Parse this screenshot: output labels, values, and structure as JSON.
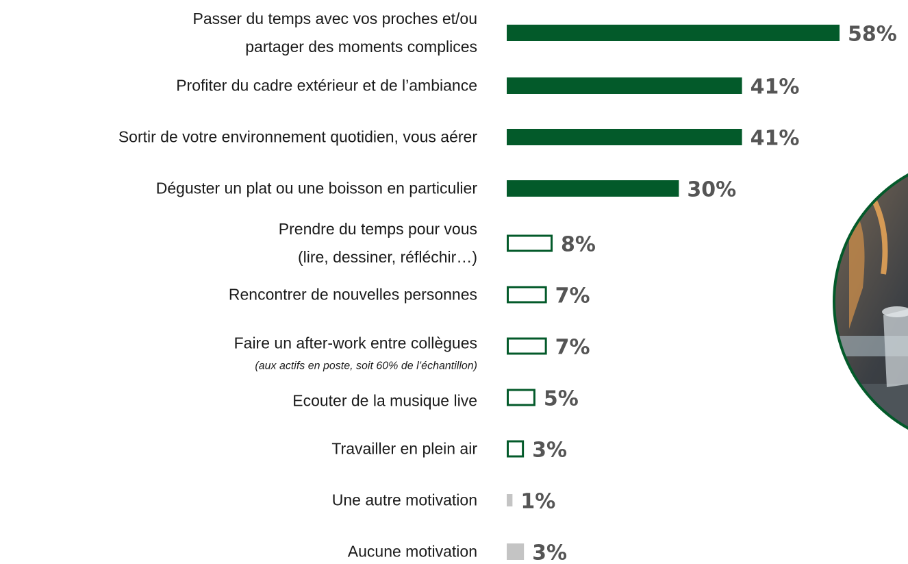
{
  "chart_data": {
    "type": "hbar",
    "categories": [
      "Passer du temps avec vos proches et/ou\npartager des moments complices",
      "Profiter du cadre extérieur et de l’ambiance",
      "Sortir de votre environnement quotidien, vous aérer",
      "Déguster un plat ou une boisson en particulier",
      "Prendre du temps pour vous\n(lire, dessiner, réfléchir…)",
      "Rencontrer de nouvelles personnes",
      "Faire un after-work entre collègues",
      "Ecouter de la musique live",
      "Travailler en plein air",
      "Une autre motivation",
      "Aucune motivation"
    ],
    "annotations": [
      {
        "category": "Faire un after-work entre collègues",
        "text": "(aux actifs en poste, soit 60% de l’échantillon)"
      }
    ],
    "values": [
      58,
      41,
      41,
      30,
      8,
      7,
      7,
      5,
      3,
      1,
      3
    ],
    "value_labels": [
      "58%",
      "41%",
      "41%",
      "30%",
      "8%",
      "7%",
      "7%",
      "5%",
      "3%",
      "1%",
      "3%"
    ],
    "styles": [
      "filled",
      "filled",
      "filled",
      "filled",
      "outline",
      "outline",
      "outline",
      "outline",
      "outline",
      "filled",
      "filled"
    ],
    "colors": [
      "#035a2a",
      "#035a2a",
      "#035a2a",
      "#035a2a",
      "#035a2a",
      "#035a2a",
      "#035a2a",
      "#035a2a",
      "#035a2a",
      "#c4c4c4",
      "#c4c4c4"
    ]
  }
}
